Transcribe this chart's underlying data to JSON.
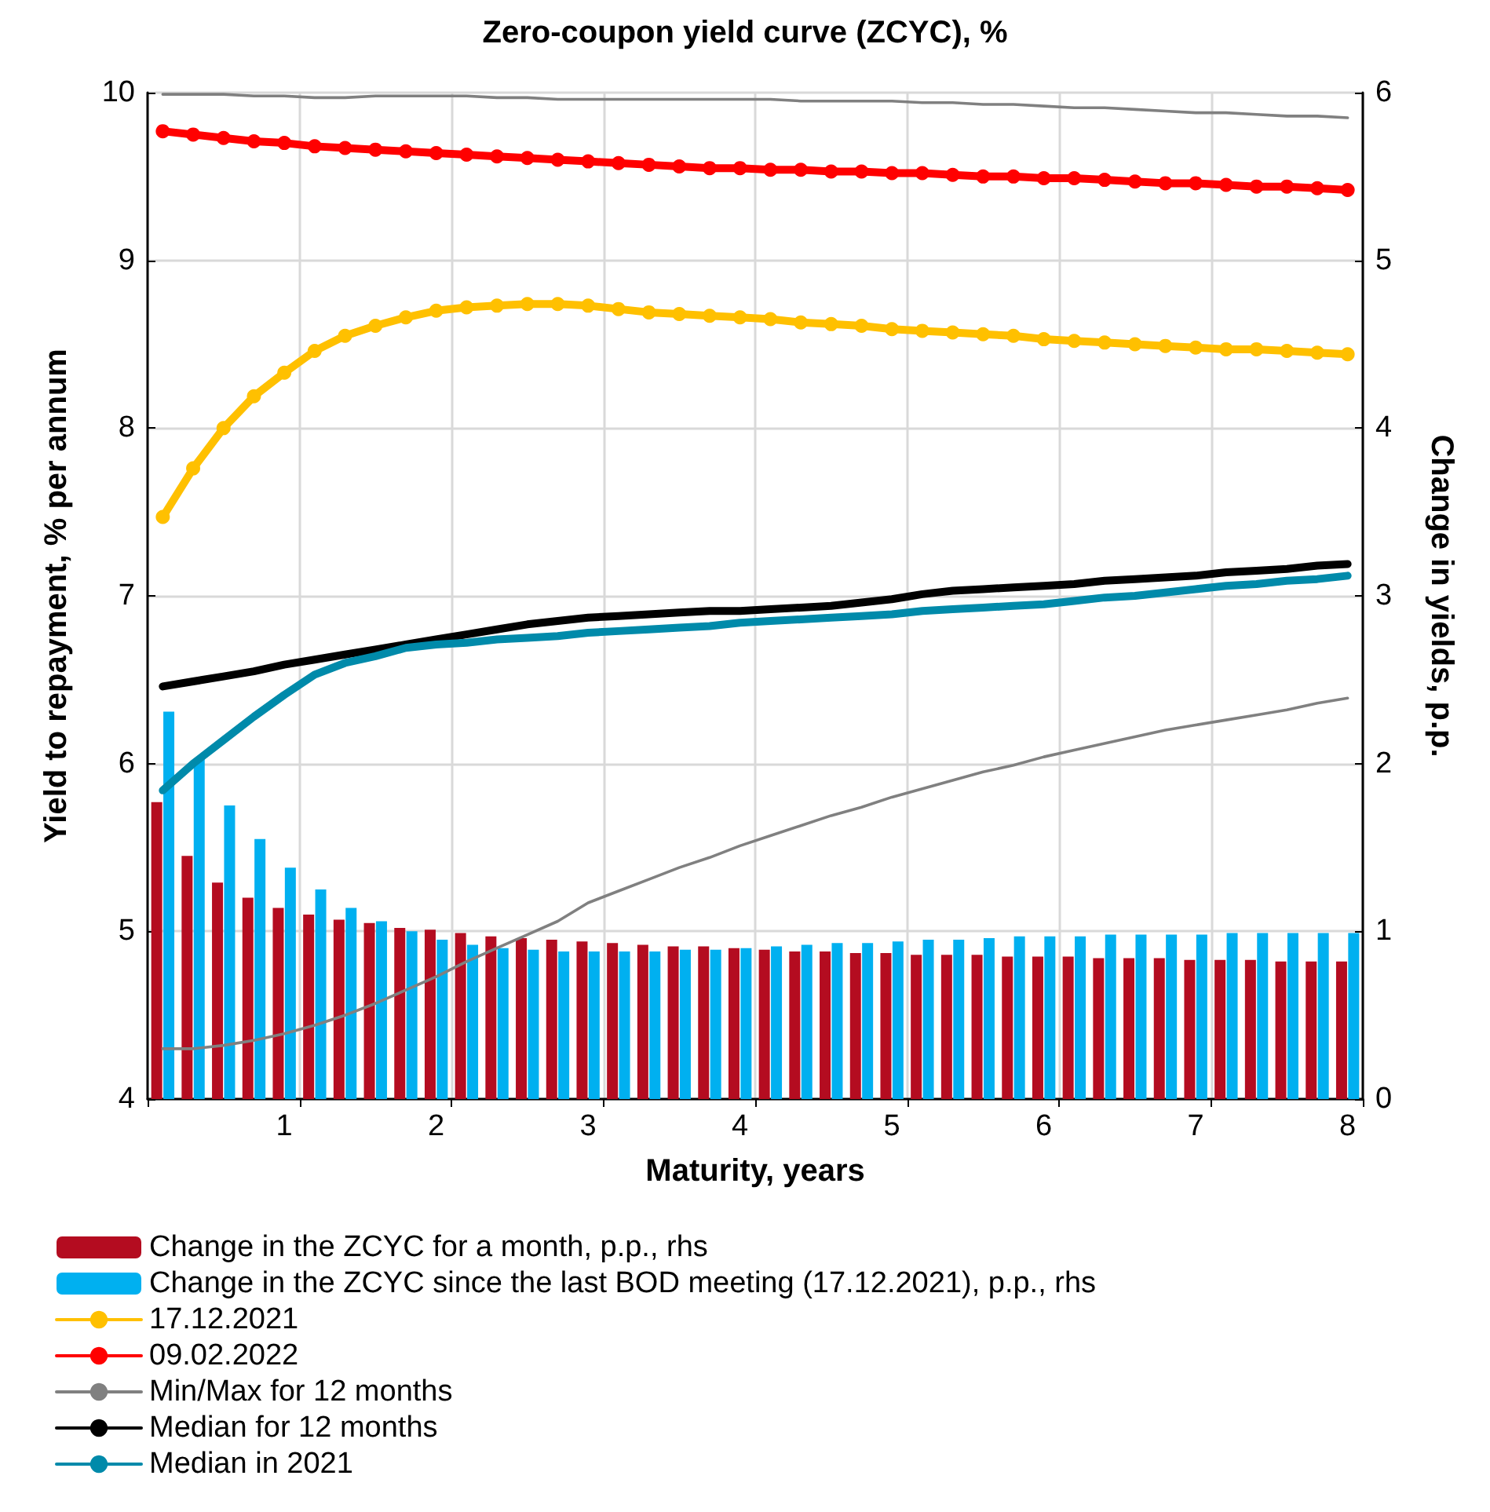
{
  "chart_data": {
    "type": "line",
    "title": "Zero-coupon yield curve (ZCYC), %",
    "xlabel": "Maturity, years",
    "ylabel": "Yield to repayment, % per annum",
    "y2label": "Change in yields, p.p.",
    "categories": [
      null,
      null,
      null,
      null,
      "1",
      null,
      null,
      null,
      null,
      "2",
      null,
      null,
      null,
      null,
      "3",
      null,
      null,
      null,
      null,
      "4",
      null,
      null,
      null,
      null,
      "5",
      null,
      null,
      null,
      null,
      "6",
      null,
      null,
      null,
      null,
      "7",
      null,
      null,
      null,
      null,
      "8"
    ],
    "ylim": [
      4,
      10
    ],
    "yticks": [
      4,
      5,
      6,
      7,
      8,
      9,
      10
    ],
    "y2lim": [
      0,
      6
    ],
    "y2ticks": [
      0,
      1,
      2,
      3,
      4,
      5,
      6
    ],
    "grid": true,
    "legend": "bottom",
    "series": [
      {
        "name": "Change in the ZCYC for a month, p.p., rhs",
        "type": "bar",
        "axis": "y2",
        "color": "#b40c20",
        "values": [
          1.77,
          1.45,
          1.29,
          1.2,
          1.14,
          1.1,
          1.07,
          1.05,
          1.02,
          1.01,
          0.99,
          0.97,
          0.96,
          0.95,
          0.94,
          0.93,
          0.92,
          0.91,
          0.91,
          0.9,
          0.89,
          0.88,
          0.88,
          0.87,
          0.87,
          0.86,
          0.86,
          0.86,
          0.85,
          0.85,
          0.85,
          0.84,
          0.84,
          0.84,
          0.83,
          0.83,
          0.83,
          0.82,
          0.82,
          0.82
        ]
      },
      {
        "name": "Change in the ZCYC since the last BOD meeting (17.12.2021), p.p., rhs",
        "type": "bar",
        "axis": "y2",
        "color": "#00b0f0",
        "values": [
          2.31,
          2.03,
          1.75,
          1.55,
          1.38,
          1.25,
          1.14,
          1.06,
          1.0,
          0.95,
          0.92,
          0.9,
          0.89,
          0.88,
          0.88,
          0.88,
          0.88,
          0.89,
          0.89,
          0.9,
          0.91,
          0.92,
          0.93,
          0.93,
          0.94,
          0.95,
          0.95,
          0.96,
          0.97,
          0.97,
          0.97,
          0.98,
          0.98,
          0.98,
          0.98,
          0.99,
          0.99,
          0.99,
          0.99,
          0.99
        ]
      },
      {
        "name": "17.12.2021",
        "marker": "circle",
        "color": "#ffc000",
        "values": [
          7.47,
          7.76,
          8.0,
          8.19,
          8.33,
          8.46,
          8.55,
          8.61,
          8.66,
          8.7,
          8.72,
          8.73,
          8.74,
          8.74,
          8.73,
          8.71,
          8.69,
          8.68,
          8.67,
          8.66,
          8.65,
          8.63,
          8.62,
          8.61,
          8.59,
          8.58,
          8.57,
          8.56,
          8.55,
          8.53,
          8.52,
          8.51,
          8.5,
          8.49,
          8.48,
          8.47,
          8.47,
          8.46,
          8.45,
          8.44
        ]
      },
      {
        "name": "09.02.2022",
        "marker": "circle",
        "color": "#ff0000",
        "values": [
          9.77,
          9.75,
          9.73,
          9.71,
          9.7,
          9.68,
          9.67,
          9.66,
          9.65,
          9.64,
          9.63,
          9.62,
          9.61,
          9.6,
          9.59,
          9.58,
          9.57,
          9.56,
          9.55,
          9.55,
          9.54,
          9.54,
          9.53,
          9.53,
          9.52,
          9.52,
          9.51,
          9.5,
          9.5,
          9.49,
          9.49,
          9.48,
          9.47,
          9.46,
          9.46,
          9.45,
          9.44,
          9.44,
          9.43,
          9.42
        ]
      },
      {
        "name": "Min/Max for 12 months",
        "marker": "none",
        "color": "#808080",
        "values": [
          4.3,
          4.3,
          4.32,
          4.35,
          4.39,
          4.44,
          4.5,
          4.57,
          4.65,
          4.73,
          4.82,
          4.9,
          4.98,
          5.06,
          5.17,
          5.24,
          5.31,
          5.38,
          5.44,
          5.51,
          5.57,
          5.63,
          5.69,
          5.74,
          5.8,
          5.85,
          5.9,
          5.95,
          5.99,
          6.04,
          6.08,
          6.12,
          6.16,
          6.2,
          6.23,
          6.26,
          6.29,
          6.32,
          6.36,
          6.39
        ]
      },
      {
        "marker": "none",
        "color": "#808080",
        "values": [
          9.99,
          9.99,
          9.99,
          9.98,
          9.98,
          9.97,
          9.97,
          9.98,
          9.98,
          9.98,
          9.98,
          9.97,
          9.97,
          9.96,
          9.96,
          9.96,
          9.96,
          9.96,
          9.96,
          9.96,
          9.96,
          9.95,
          9.95,
          9.95,
          9.95,
          9.94,
          9.94,
          9.93,
          9.93,
          9.92,
          9.91,
          9.91,
          9.9,
          9.89,
          9.88,
          9.88,
          9.87,
          9.86,
          9.86,
          9.85
        ]
      },
      {
        "name": "Median for 12 months",
        "marker": "none",
        "color": "#000000",
        "values": [
          6.46,
          6.49,
          6.52,
          6.55,
          6.59,
          6.62,
          6.65,
          6.68,
          6.71,
          6.74,
          6.77,
          6.8,
          6.83,
          6.85,
          6.87,
          6.88,
          6.89,
          6.9,
          6.91,
          6.91,
          6.92,
          6.93,
          6.94,
          6.96,
          6.98,
          7.01,
          7.03,
          7.04,
          7.05,
          7.06,
          7.07,
          7.09,
          7.1,
          7.11,
          7.12,
          7.14,
          7.15,
          7.16,
          7.18,
          7.19
        ]
      },
      {
        "name": "Median in 2021",
        "marker": "none",
        "color": "#008aaa",
        "values": [
          5.84,
          6.0,
          6.14,
          6.28,
          6.41,
          6.53,
          6.6,
          6.64,
          6.69,
          6.71,
          6.72,
          6.74,
          6.75,
          6.76,
          6.78,
          6.79,
          6.8,
          6.81,
          6.82,
          6.84,
          6.85,
          6.86,
          6.87,
          6.88,
          6.89,
          6.91,
          6.92,
          6.93,
          6.94,
          6.95,
          6.97,
          6.99,
          7.0,
          7.02,
          7.04,
          7.06,
          7.07,
          7.09,
          7.1,
          7.12
        ]
      }
    ]
  }
}
